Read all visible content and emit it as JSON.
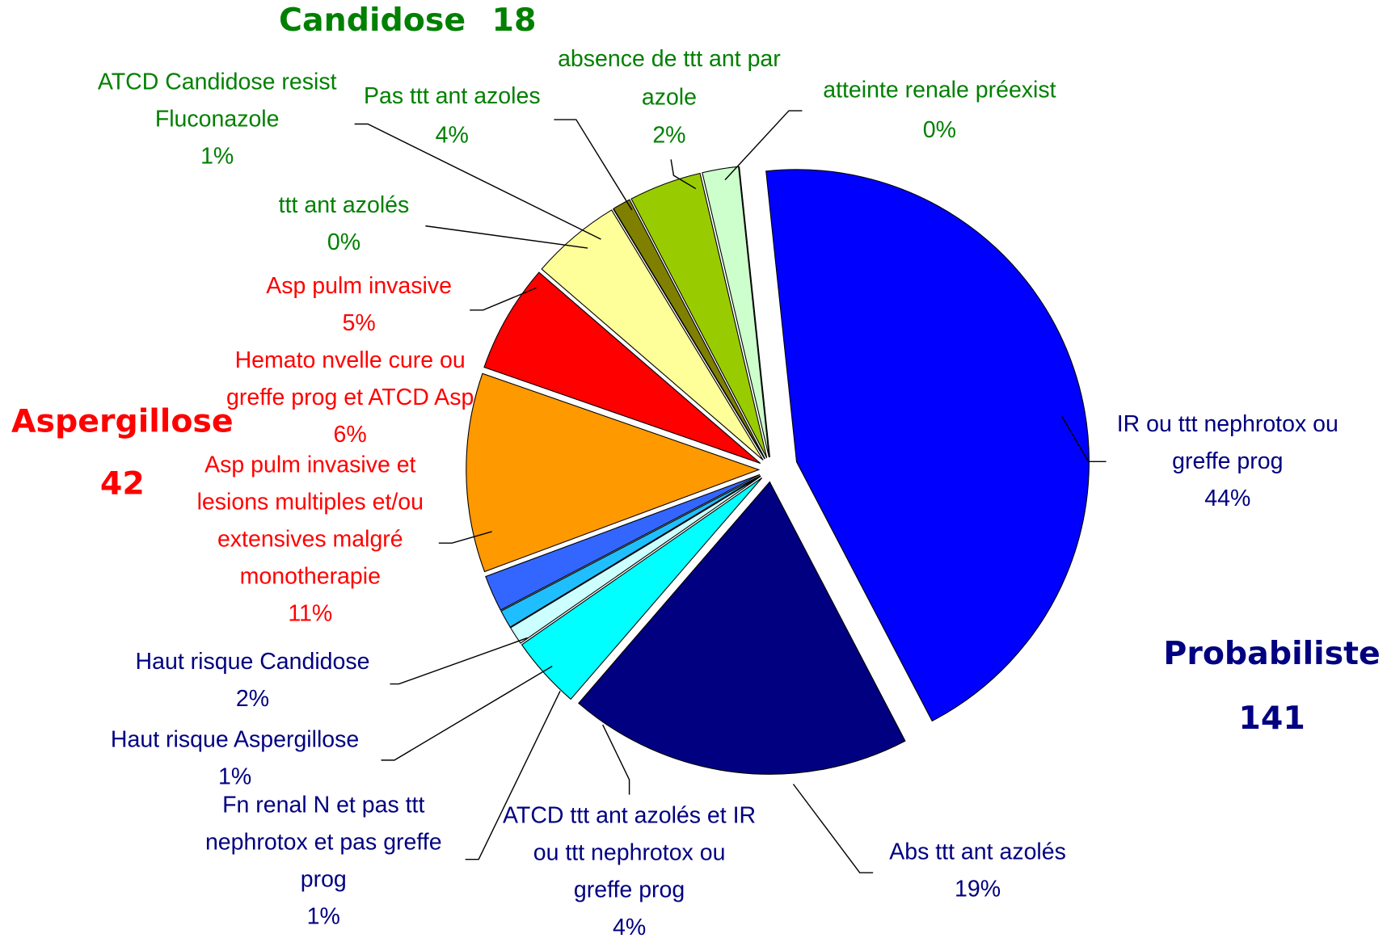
{
  "chart_data": {
    "type": "pie",
    "groups": [
      {
        "name": "Candidose",
        "value": 18,
        "color": "#008000"
      },
      {
        "name": "Aspergillose",
        "value": 42,
        "color": "#ff0000"
      },
      {
        "name": "Probabiliste",
        "value": 141,
        "color": "#000080"
      }
    ],
    "categories": [
      [
        "IR ou ttt nephrotox ou",
        "greffe prog"
      ],
      [
        "Abs ttt ant azolés"
      ],
      [
        "ATCD ttt ant azolés et IR",
        "ou ttt nephrotox ou",
        "greffe prog"
      ],
      [
        "Fn renal N et pas ttt",
        "nephrotox et pas greffe",
        "prog"
      ],
      [
        "Haut risque Aspergillose"
      ],
      [
        "Haut risque Candidose"
      ],
      [
        "Asp pulm invasive et",
        "lesions multiples et/ou",
        "extensives malgré",
        "monotherapie"
      ],
      [
        "Hemato nvelle cure ou",
        "greffe prog et ATCD Asp"
      ],
      [
        "Asp pulm invasive"
      ],
      [
        "ttt ant azolés"
      ],
      [
        "ATCD Candidose resist",
        "Fluconazole"
      ],
      [
        "Pas ttt ant azoles"
      ],
      [
        "absence de ttt ant par",
        "azole"
      ],
      [
        "atteinte renale préexist"
      ]
    ],
    "values": [
      44,
      19,
      4,
      1,
      1,
      2,
      11,
      6,
      5,
      0,
      1,
      4,
      2,
      0
    ],
    "value_labels": [
      "44%",
      "19%",
      "4%",
      "1%",
      "1%",
      "2%",
      "11%",
      "6%",
      "5%",
      "0%",
      "1%",
      "4%",
      "2%",
      "0%"
    ],
    "colors": [
      "#0000ff",
      "#000080",
      "#00ffff",
      "#ccffff",
      "#1fbfff",
      "#3366ff",
      "#ff9900",
      "#ff0000",
      "#ffff99",
      "#006600",
      "#808000",
      "#99cc00",
      "#ccffcc",
      "#00cc00"
    ],
    "label_colors": [
      "#000080",
      "#000080",
      "#000080",
      "#000080",
      "#000080",
      "#000080",
      "#ff0000",
      "#ff0000",
      "#ff0000",
      "#008000",
      "#008000",
      "#008000",
      "#008000",
      "#008000"
    ]
  }
}
